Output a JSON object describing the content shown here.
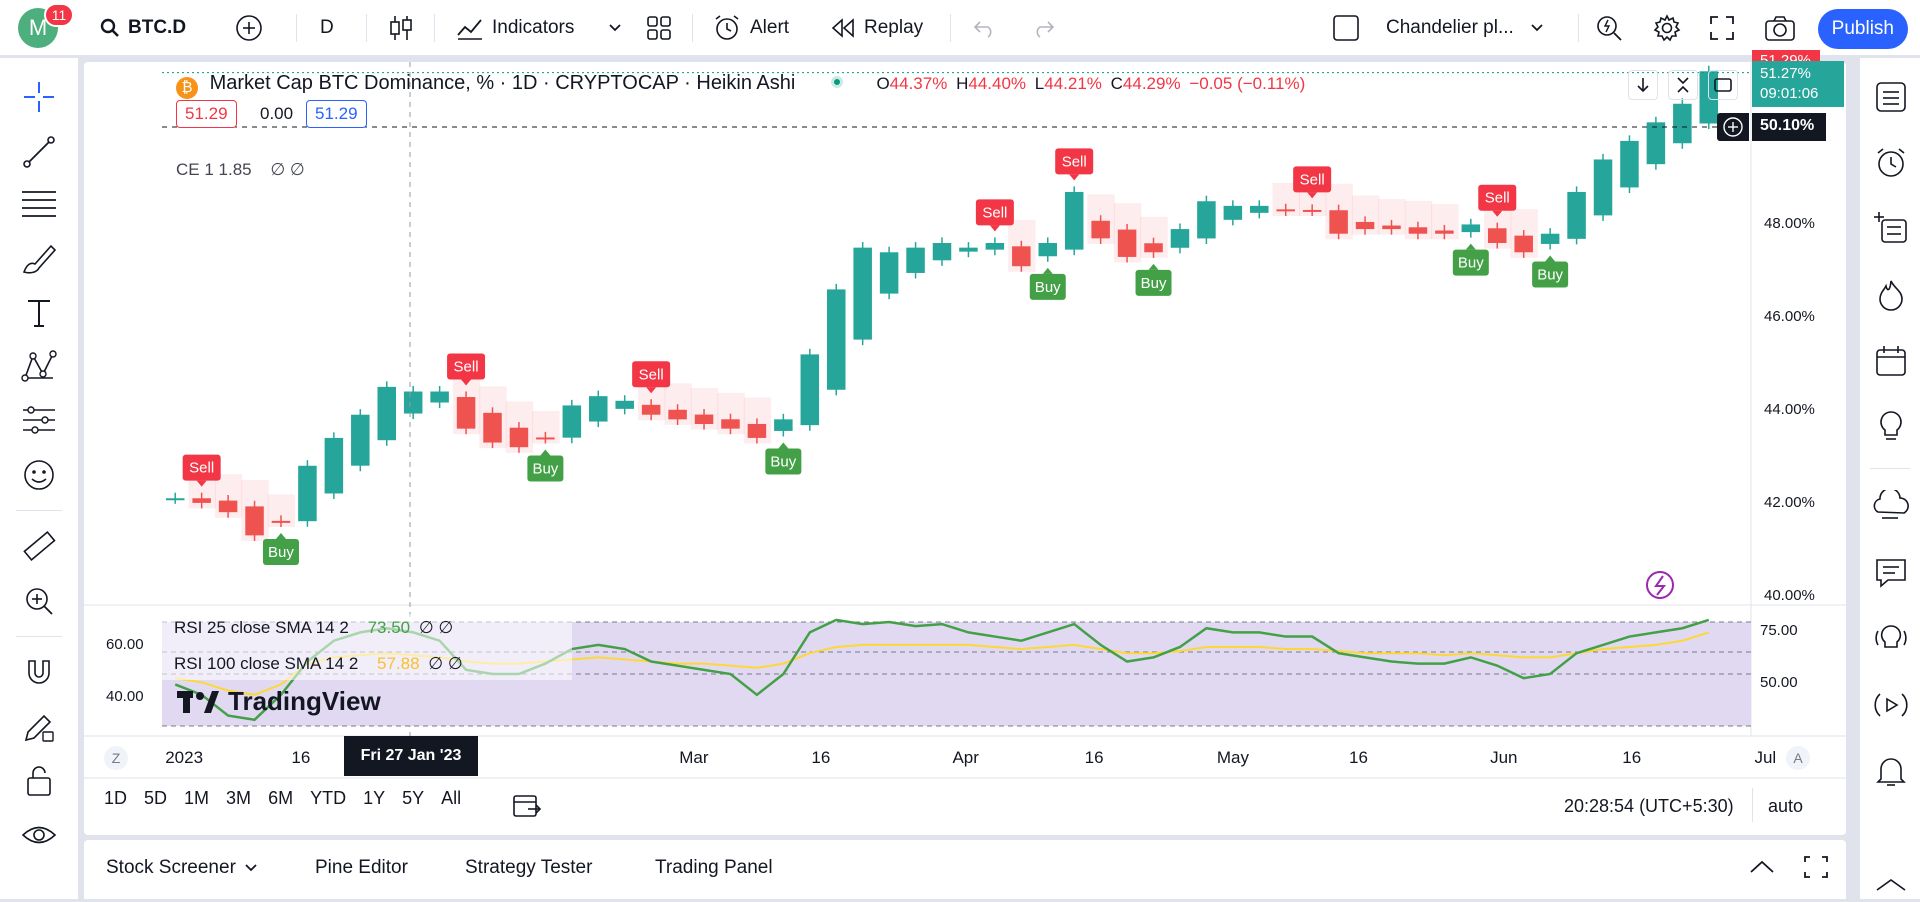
{
  "topbar": {
    "avatar_letter": "M",
    "notifications": "11",
    "symbol": "BTC.D",
    "interval": "D",
    "indicators_label": "Indicators",
    "alert_label": "Alert",
    "replay_label": "Replay",
    "layout_name": "Chandelier pl...",
    "publish_label": "Publish"
  },
  "legend": {
    "title": "Market Cap BTC Dominance, % · 1D · CRYPTOCAP · Heikin Ashi",
    "o_label": "O",
    "o_value": "44.37%",
    "h_label": "H",
    "h_value": "44.40%",
    "l_label": "L",
    "l_value": "44.21%",
    "c_label": "C",
    "c_value": "44.29%",
    "change": "−0.05 (−0.11%)",
    "bid": "51.29",
    "spread": "0.00",
    "ask": "51.29",
    "ce_label": "CE 1 1.85",
    "ce_values": "∅ ∅",
    "pct_symbol": "%"
  },
  "price_axis": {
    "ticks": [
      "48.00%",
      "46.00%",
      "44.00%",
      "42.00%",
      "40.00%"
    ],
    "last_high": "51.29%",
    "last_price": "51.27%",
    "countdown": "09:01:06",
    "crosshair_price": "50.10%"
  },
  "rsi": {
    "line1_label": "RSI 25 close SMA 14 2",
    "line1_value": "73.50",
    "line1_extra": "∅ ∅",
    "line2_label": "RSI 100 close SMA 14 2",
    "line2_value": "57.88",
    "line2_extra": "∅ ∅",
    "left_ticks": [
      "60.00",
      "40.00"
    ],
    "right_ticks": [
      "75.00",
      "50.00"
    ],
    "watermark": "TradingView",
    "colors": {
      "rsi25": "#43a047",
      "rsi100": "#fdd835",
      "band": "#e1d9f2"
    }
  },
  "time_axis": {
    "ticks": [
      "2023",
      "16",
      "Mar",
      "16",
      "Apr",
      "16",
      "May",
      "16",
      "Jun",
      "16",
      "Jul"
    ],
    "crosshair_date": "Fri 27 Jan '23",
    "zoom_left": "Z",
    "zoom_right": "A"
  },
  "range_bar": {
    "ranges": [
      "1D",
      "5D",
      "1M",
      "3M",
      "6M",
      "YTD",
      "1Y",
      "5Y",
      "All"
    ],
    "clock": "20:28:54 (UTC+5:30)",
    "scale_mode": "auto"
  },
  "bottom_panel": {
    "tabs": [
      "Stock Screener",
      "Pine Editor",
      "Strategy Tester",
      "Trading Panel"
    ]
  },
  "signals": {
    "sell_label": "Sell",
    "buy_label": "Buy",
    "sell_color": "#f23645",
    "buy_color": "#43a047"
  },
  "chart_data": {
    "type": "candlestick",
    "series_name": "Market Cap BTC Dominance, %",
    "ylim": [
      39.8,
      51.5
    ],
    "x": [
      "2023-01-01",
      "2023-01-04",
      "2023-01-07",
      "2023-01-10",
      "2023-01-13",
      "2023-01-16",
      "2023-01-19",
      "2023-01-22",
      "2023-01-25",
      "2023-01-28",
      "2023-01-31",
      "2023-02-03",
      "2023-02-06",
      "2023-02-09",
      "2023-02-12",
      "2023-02-15",
      "2023-02-18",
      "2023-02-21",
      "2023-02-24",
      "2023-02-27",
      "2023-03-02",
      "2023-03-05",
      "2023-03-08",
      "2023-03-11",
      "2023-03-14",
      "2023-03-17",
      "2023-03-20",
      "2023-03-23",
      "2023-03-26",
      "2023-03-29",
      "2023-04-01",
      "2023-04-04",
      "2023-04-07",
      "2023-04-10",
      "2023-04-13",
      "2023-04-16",
      "2023-04-19",
      "2023-04-22",
      "2023-04-25",
      "2023-04-28",
      "2023-05-01",
      "2023-05-04",
      "2023-05-07",
      "2023-05-10",
      "2023-05-13",
      "2023-05-16",
      "2023-05-19",
      "2023-05-22",
      "2023-05-25",
      "2023-05-28",
      "2023-05-31",
      "2023-06-03",
      "2023-06-06",
      "2023-06-09",
      "2023-06-12",
      "2023-06-15",
      "2023-06-18",
      "2023-06-21",
      "2023-06-24"
    ],
    "close": [
      42.1,
      42.0,
      41.8,
      41.3,
      41.6,
      42.8,
      43.4,
      43.9,
      44.5,
      44.4,
      44.4,
      43.6,
      43.3,
      43.2,
      43.4,
      44.1,
      44.3,
      44.2,
      43.9,
      43.8,
      43.7,
      43.6,
      43.4,
      43.8,
      45.2,
      46.6,
      47.5,
      47.4,
      47.5,
      47.6,
      47.5,
      47.6,
      47.1,
      47.6,
      48.7,
      47.7,
      47.3,
      47.4,
      47.9,
      48.5,
      48.4,
      48.4,
      48.3,
      48.3,
      47.8,
      47.9,
      47.9,
      47.8,
      47.8,
      48.0,
      47.6,
      47.4,
      47.8,
      48.7,
      49.4,
      49.8,
      50.2,
      50.6,
      51.3
    ],
    "signals": [
      {
        "type": "Sell",
        "x": "2023-01-04"
      },
      {
        "type": "Buy",
        "x": "2023-01-13"
      },
      {
        "type": "Sell",
        "x": "2023-02-03"
      },
      {
        "type": "Buy",
        "x": "2023-02-12"
      },
      {
        "type": "Sell",
        "x": "2023-02-24"
      },
      {
        "type": "Buy",
        "x": "2023-03-11"
      },
      {
        "type": "Sell",
        "x": "2023-04-04"
      },
      {
        "type": "Buy",
        "x": "2023-04-10"
      },
      {
        "type": "Sell",
        "x": "2023-04-13"
      },
      {
        "type": "Buy",
        "x": "2023-04-22"
      },
      {
        "type": "Sell",
        "x": "2023-05-10"
      },
      {
        "type": "Buy",
        "x": "2023-05-28"
      },
      {
        "type": "Sell",
        "x": "2023-05-31"
      },
      {
        "type": "Buy",
        "x": "2023-06-06"
      }
    ],
    "rsi25": [
      45,
      40,
      30,
      28,
      40,
      56,
      66,
      70,
      72,
      70,
      66,
      52,
      50,
      50,
      55,
      62,
      64,
      62,
      56,
      54,
      52,
      50,
      40,
      50,
      70,
      76,
      74,
      75,
      73,
      74,
      70,
      68,
      66,
      70,
      74,
      64,
      56,
      58,
      63,
      72,
      70,
      70,
      68,
      68,
      60,
      58,
      56,
      55,
      55,
      58,
      54,
      48,
      50,
      60,
      64,
      68,
      70,
      72,
      76
    ],
    "rsi100": [
      48,
      46,
      42,
      40,
      45,
      55,
      58,
      59,
      60,
      59,
      58,
      56,
      55,
      55,
      56,
      57,
      58,
      57,
      56,
      55,
      55,
      54,
      53,
      55,
      60,
      63,
      64,
      64,
      64,
      64,
      64,
      63,
      62,
      63,
      64,
      62,
      60,
      60,
      61,
      63,
      63,
      63,
      62,
      62,
      61,
      60,
      60,
      60,
      59,
      60,
      59,
      58,
      58,
      60,
      62,
      63,
      64,
      66,
      70
    ]
  }
}
